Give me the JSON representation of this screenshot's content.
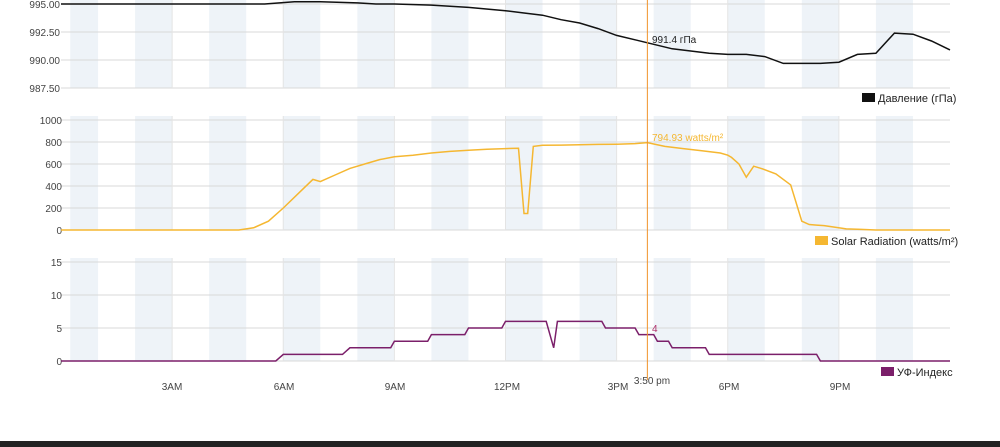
{
  "cursor": {
    "time_label": "3:50 pm",
    "x": 15.83,
    "color": "#f0932b"
  },
  "x_axis": {
    "range": [
      0,
      24
    ],
    "ticks": [
      {
        "x": 3,
        "label": "3AM"
      },
      {
        "x": 6,
        "label": "6AM"
      },
      {
        "x": 9,
        "label": "9AM"
      },
      {
        "x": 12,
        "label": "12PM"
      },
      {
        "x": 15,
        "label": "3PM"
      },
      {
        "x": 18,
        "label": "6PM"
      },
      {
        "x": 21,
        "label": "9PM"
      }
    ],
    "shaded_bands": [
      [
        0.25,
        1.0
      ],
      [
        2.0,
        3.0
      ],
      [
        4.0,
        5.0
      ],
      [
        6.0,
        7.0
      ],
      [
        8.0,
        9.0
      ],
      [
        10.0,
        11.0
      ],
      [
        12.0,
        13.0
      ],
      [
        14.0,
        15.0
      ],
      [
        16.0,
        17.0
      ],
      [
        18.0,
        19.0
      ],
      [
        20.0,
        21.0
      ],
      [
        22.0,
        23.0
      ]
    ]
  },
  "chart_data": [
    {
      "type": "line",
      "legend": "Давление (гПа)",
      "color": "#111111",
      "readout": "991.4 гПа",
      "yticks": [
        "995.00",
        "992.50",
        "990.00",
        "987.50"
      ],
      "ylim": [
        987.5,
        995.0
      ],
      "grid": true,
      "legend_position": "bottom-right",
      "x": [
        0.0,
        5.5,
        6.3,
        7.0,
        8.0,
        8.5,
        9.0,
        10.0,
        11.0,
        12.0,
        12.5,
        13.0,
        13.5,
        14.0,
        14.5,
        15.0,
        15.5,
        16.0,
        16.5,
        17.0,
        17.5,
        18.0,
        18.5,
        19.0,
        19.5,
        20.0,
        20.5,
        21.0,
        21.5,
        22.0,
        22.5,
        23.0,
        23.5,
        24.0
      ],
      "y": [
        995.0,
        995.0,
        995.2,
        995.2,
        995.1,
        995.0,
        995.0,
        994.9,
        994.7,
        994.4,
        994.2,
        994.0,
        993.6,
        993.3,
        992.8,
        992.2,
        991.8,
        991.4,
        991.0,
        990.8,
        990.6,
        990.5,
        990.5,
        990.3,
        989.7,
        989.7,
        989.7,
        989.8,
        990.5,
        990.6,
        992.4,
        992.3,
        991.7,
        990.9
      ]
    },
    {
      "type": "line",
      "legend": "Solar Radiation (watts/m²)",
      "color": "#f5b731",
      "readout": "794.93 watts/m²",
      "yticks": [
        "1000",
        "800",
        "600",
        "400",
        "200",
        "0"
      ],
      "ylim": [
        0,
        1000
      ],
      "grid": true,
      "legend_position": "bottom-right",
      "x": [
        0.0,
        4.8,
        5.2,
        5.6,
        6.0,
        6.4,
        6.8,
        7.0,
        7.4,
        7.8,
        8.2,
        8.6,
        9.0,
        9.5,
        10.0,
        10.5,
        11.0,
        11.5,
        12.0,
        12.2,
        12.35,
        12.5,
        12.6,
        12.75,
        13.0,
        13.5,
        14.0,
        14.5,
        15.0,
        15.5,
        15.83,
        16.3,
        16.8,
        17.3,
        17.8,
        18.0,
        18.1,
        18.3,
        18.5,
        18.7,
        18.9,
        19.3,
        19.7,
        20.0,
        20.2,
        20.4,
        20.6,
        20.9,
        21.2,
        21.6,
        22.0,
        23.0,
        24.0
      ],
      "y": [
        0,
        0,
        20,
        80,
        200,
        330,
        460,
        440,
        500,
        560,
        600,
        640,
        665,
        680,
        700,
        715,
        725,
        735,
        740,
        742,
        743,
        150,
        150,
        760,
        770,
        772,
        775,
        778,
        780,
        785,
        794.93,
        760,
        740,
        720,
        700,
        680,
        660,
        600,
        480,
        580,
        560,
        510,
        410,
        80,
        50,
        45,
        40,
        25,
        10,
        5,
        0,
        0,
        0
      ]
    },
    {
      "type": "line",
      "legend": "УФ-Индекс",
      "color": "#7b1f6a",
      "readout": "4",
      "yticks": [
        "15",
        "10",
        "5",
        "0"
      ],
      "ylim": [
        0,
        15
      ],
      "grid": true,
      "legend_position": "bottom-right",
      "x": [
        0.0,
        5.8,
        6.0,
        7.6,
        7.8,
        8.9,
        9.0,
        9.9,
        10.0,
        10.9,
        11.0,
        11.9,
        12.0,
        13.0,
        13.1,
        13.3,
        13.4,
        14.0,
        14.6,
        14.7,
        15.5,
        15.6,
        16.0,
        16.1,
        16.4,
        16.5,
        17.4,
        17.5,
        20.4,
        20.5,
        24.0
      ],
      "y": [
        0,
        0,
        1,
        1,
        2,
        2,
        3,
        3,
        4,
        4,
        5,
        5,
        6,
        6,
        6,
        2,
        6,
        6,
        6,
        5,
        5,
        4,
        4,
        3,
        3,
        2,
        2,
        1,
        1,
        0,
        0
      ]
    }
  ]
}
